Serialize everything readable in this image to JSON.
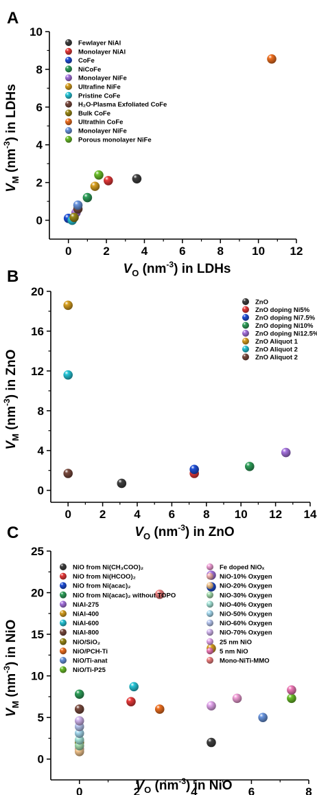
{
  "chart_data": [
    {
      "type": "scatter",
      "panel": "A",
      "xlabel": {
        "main": "V",
        "sub": "O",
        "pre": " (nm",
        "sup": "-3",
        "post": ") in LDHs"
      },
      "ylabel": {
        "main": "V",
        "sub": "M",
        "pre": " (nm",
        "sup": "-3",
        "post": ") in LDHs"
      },
      "xlim": [
        -1,
        12
      ],
      "ylim": [
        -1,
        10
      ],
      "xticks": [
        0,
        2,
        4,
        6,
        8,
        10,
        12
      ],
      "yticks": [
        0,
        2,
        4,
        6,
        8,
        10
      ],
      "legend": "top-left",
      "series": [
        {
          "name": "Fewlayer NiAl",
          "color": "#404040",
          "points": [
            [
              3.6,
              2.2
            ]
          ]
        },
        {
          "name": "Monolayer NiAl",
          "color": "#e83a3a",
          "points": [
            [
              2.1,
              2.1
            ]
          ]
        },
        {
          "name": "CoFe",
          "color": "#1f4fd8",
          "points": [
            [
              0.0,
              0.1
            ]
          ]
        },
        {
          "name": "NiCoFe",
          "color": "#2fa05a",
          "points": [
            [
              1.0,
              1.2
            ]
          ]
        },
        {
          "name": "Monolayer NiFe",
          "color": "#a774e0",
          "points": [
            [
              0.4,
              0.4
            ]
          ]
        },
        {
          "name": "Ultrafine NiFe",
          "color": "#d8a020",
          "points": [
            [
              1.4,
              1.8
            ]
          ]
        },
        {
          "name": "Pristine CoFe",
          "color": "#26c6d8",
          "points": [
            [
              0.2,
              0.0
            ]
          ]
        },
        {
          "name": "H₂O-Plasma Exfoliated CoFe",
          "color": "#7a4a3e",
          "points": [
            [
              0.5,
              0.6
            ]
          ]
        },
        {
          "name": "Bulk CoFe",
          "color": "#9c8a18",
          "points": [
            [
              0.3,
              0.15
            ]
          ]
        },
        {
          "name": "Ultrathin CoFe",
          "color": "#f07020",
          "points": [
            [
              10.7,
              8.55
            ]
          ]
        },
        {
          "name": "Monolayer NiFe",
          "color": "#6a96e0",
          "points": [
            [
              0.5,
              0.8
            ]
          ]
        },
        {
          "name": "Porous monolayer NiFe",
          "color": "#6cc02a",
          "points": [
            [
              1.6,
              2.4
            ]
          ]
        }
      ]
    },
    {
      "type": "scatter",
      "panel": "B",
      "xlabel": {
        "main": "V",
        "sub": "O",
        "pre": " (nm",
        "sup": "-3",
        "post": ") in ZnO"
      },
      "ylabel": {
        "main": "V",
        "sub": "M",
        "pre": " (nm",
        "sup": "-3",
        "post": ") in ZnO"
      },
      "xlim": [
        -1,
        14
      ],
      "ylim": [
        -1.2,
        20
      ],
      "xticks": [
        0,
        2,
        4,
        6,
        8,
        10,
        12,
        14
      ],
      "yticks": [
        0,
        4,
        8,
        12,
        16,
        20
      ],
      "legend": "top-right",
      "series": [
        {
          "name": "ZnO",
          "color": "#404040",
          "points": [
            [
              3.1,
              0.7
            ]
          ]
        },
        {
          "name": "ZnO doping Ni5%",
          "color": "#e83a3a",
          "points": [
            [
              7.3,
              1.7
            ]
          ]
        },
        {
          "name": "ZnO doping Ni7.5%",
          "color": "#1f4fd8",
          "points": [
            [
              7.3,
              2.1
            ]
          ]
        },
        {
          "name": "ZnO doping Ni10%",
          "color": "#2fa05a",
          "points": [
            [
              10.5,
              2.4
            ]
          ]
        },
        {
          "name": "ZnO doping Ni12.5%",
          "color": "#a774e0",
          "points": [
            [
              12.6,
              3.8
            ]
          ]
        },
        {
          "name": "ZnO Aliquot 1",
          "color": "#d8a020",
          "points": [
            [
              0.0,
              18.6
            ]
          ]
        },
        {
          "name": "ZnO Aliquot 2",
          "color": "#26c6d8",
          "points": [
            [
              0.0,
              11.6
            ]
          ]
        },
        {
          "name": "ZnO Aliquot 2",
          "color": "#7a4a3e",
          "points": [
            [
              0.0,
              1.7
            ]
          ]
        }
      ]
    },
    {
      "type": "scatter",
      "panel": "C",
      "xlabel": {
        "main": "V",
        "sub": "O",
        "pre": " (nm",
        "sup": "-3",
        "post": ") in NiO"
      },
      "ylabel": {
        "main": "V",
        "sub": "M",
        "pre": " (nm",
        "sup": "-3",
        "post": ") in NiO"
      },
      "xlim": [
        -1,
        8
      ],
      "ylim": [
        -2.5,
        25
      ],
      "xticks": [
        0,
        2,
        4,
        6,
        8
      ],
      "yticks": [
        0,
        5,
        10,
        15,
        20,
        25
      ],
      "legend": "top, two columns",
      "series": [
        {
          "name": "NiO from Ni(CH₃COO)₂",
          "color": "#404040",
          "points": [
            [
              4.6,
              2.0
            ]
          ]
        },
        {
          "name": "NiO from Ni(HCOO)₂",
          "color": "#e83a3a",
          "points": [
            [
              1.8,
              6.9
            ]
          ]
        },
        {
          "name": "NiO from Ni(acac)₂",
          "color": "#1f4fd8",
          "points": [
            [
              4.6,
              20.7
            ]
          ]
        },
        {
          "name": "NiO from Ni(acac)₂ without TOPO",
          "color": "#2fa05a",
          "points": [
            [
              0.0,
              7.8
            ]
          ]
        },
        {
          "name": "NiAl-275",
          "color": "#a774e0",
          "points": [
            [
              4.6,
              22.1
            ]
          ]
        },
        {
          "name": "NiAl-400",
          "color": "#d8a020",
          "points": [
            [
              4.6,
              13.3
            ]
          ]
        },
        {
          "name": "NiAl-600",
          "color": "#26c6d8",
          "points": [
            [
              1.9,
              8.7
            ]
          ]
        },
        {
          "name": "NiAl-800",
          "color": "#7a4a3e",
          "points": [
            [
              0.0,
              6.0
            ]
          ]
        },
        {
          "name": "NiO/SiO₂",
          "color": "#9c8a18",
          "points": [
            [
              0.0,
              2.0
            ]
          ]
        },
        {
          "name": "NiO/PCH-Ti",
          "color": "#f07020",
          "points": [
            [
              2.8,
              6.0
            ]
          ]
        },
        {
          "name": "NiO/Ti-anat",
          "color": "#6a96e0",
          "points": [
            [
              6.4,
              5.0
            ]
          ]
        },
        {
          "name": "NiO/Ti-P25",
          "color": "#6cc02a",
          "points": [
            [
              7.4,
              7.3
            ]
          ]
        },
        {
          "name": "Fe doped NiOₓ",
          "color": "#f2a0d8",
          "points": [
            [
              5.5,
              7.3
            ]
          ]
        },
        {
          "name": "NiO-10% Oxygen",
          "color": "#f6b4b4",
          "points": [
            [
              0.0,
              1.2
            ]
          ]
        },
        {
          "name": "NiO-20% Oxygen",
          "color": "#f6c890",
          "points": [
            [
              0.0,
              0.9
            ]
          ]
        },
        {
          "name": "NiO-30% Oxygen",
          "color": "#a8e0b0",
          "points": [
            [
              0.0,
              1.6
            ]
          ]
        },
        {
          "name": "NiO-40% Oxygen",
          "color": "#a8e8dc",
          "points": [
            [
              0.0,
              2.3
            ]
          ]
        },
        {
          "name": "NiO-50% Oxygen",
          "color": "#a8dcf2",
          "points": [
            [
              0.0,
              3.1
            ]
          ]
        },
        {
          "name": "NiO-60% Oxygen",
          "color": "#b8c8f2",
          "points": [
            [
              0.0,
              3.9
            ]
          ]
        },
        {
          "name": "NiO-70% Oxygen",
          "color": "#d4b8f2",
          "points": [
            [
              0.0,
              4.6
            ]
          ]
        },
        {
          "name": "25 nm NiO",
          "color": "#e6a8f0",
          "points": [
            [
              4.6,
              6.4
            ]
          ]
        },
        {
          "name": "5 nm NiO",
          "color": "#f07ab8",
          "points": [
            [
              7.4,
              8.3
            ]
          ]
        },
        {
          "name": "Mono-NiTi-MMO",
          "color": "#f08080",
          "points": [
            [
              2.8,
              19.8
            ]
          ]
        }
      ]
    }
  ]
}
